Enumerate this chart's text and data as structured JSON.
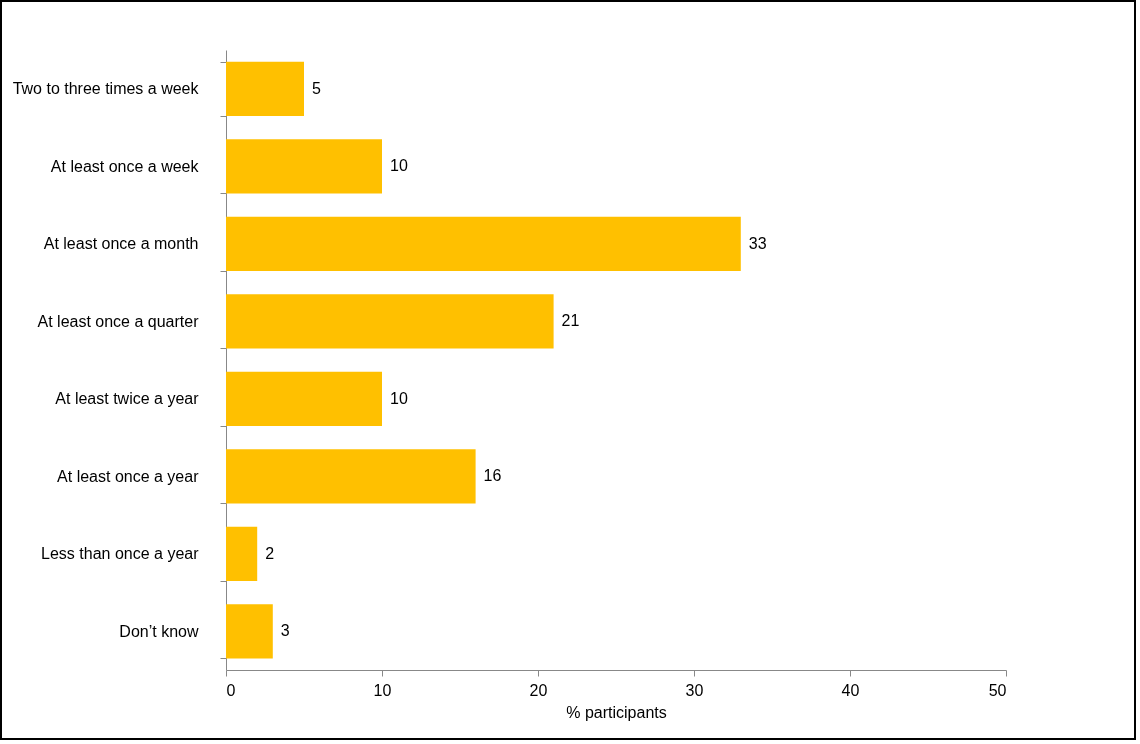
{
  "chart_data": {
    "type": "bar",
    "orientation": "horizontal",
    "categories": [
      "Two to three times a week",
      "At least once a week",
      "At least once a month",
      "At least once a quarter",
      "At least twice a year",
      "At least once a year",
      "Less than once a year",
      "Don’t know"
    ],
    "values": [
      5,
      10,
      33,
      21,
      10,
      16,
      2,
      3
    ],
    "color": "#ffc000",
    "xlim": [
      0,
      50
    ],
    "xticks": [
      0,
      10,
      20,
      30,
      40,
      50
    ],
    "xlabel": "% participants",
    "data_labels": true,
    "grid": false
  }
}
